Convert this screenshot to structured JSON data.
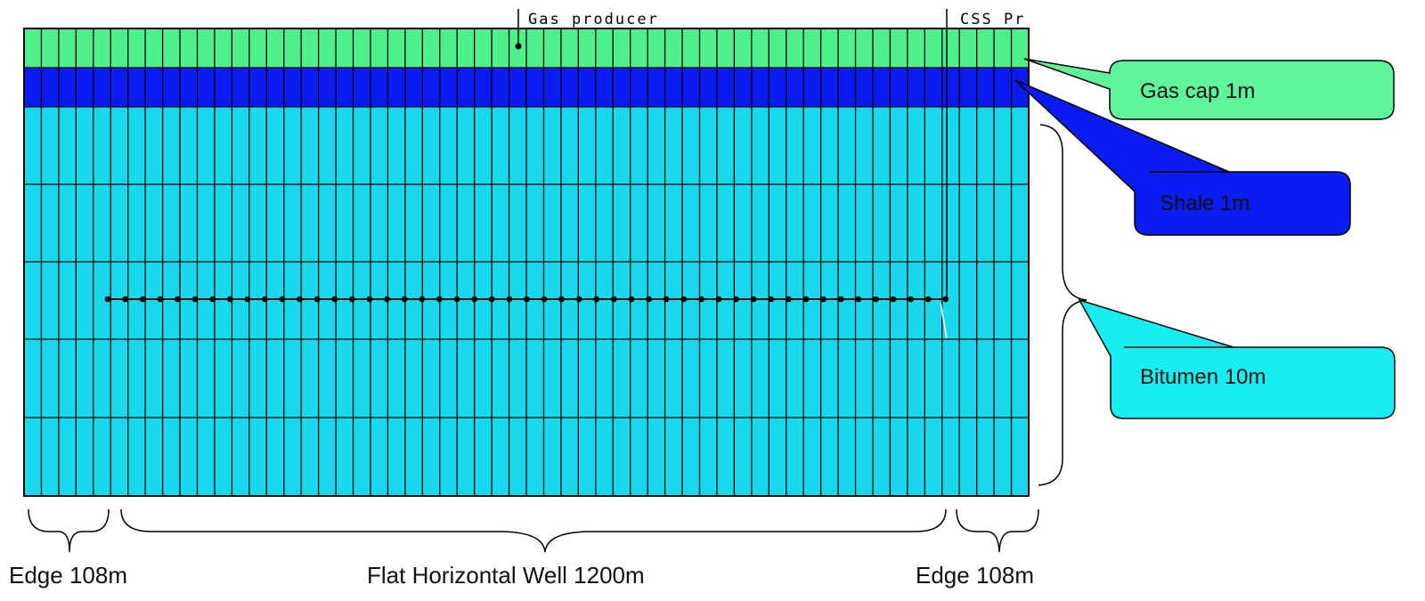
{
  "wells": {
    "gas_producer_label": "Gas producer",
    "css_label": "CSS Pr"
  },
  "callouts": {
    "gas_cap": "Gas cap 1m",
    "shale": "Shale 1m",
    "bitumen": "Bitumen 10m"
  },
  "dimensions": {
    "edge_left": "Edge 108m",
    "flat_well": "Flat Horizontal Well 1200m",
    "edge_right": "Edge 108m"
  },
  "colors": {
    "gas_cap": "#4df08a",
    "shale": "#0a1cf0",
    "bitumen": "#18d8ec",
    "grid_line": "#000000"
  }
}
